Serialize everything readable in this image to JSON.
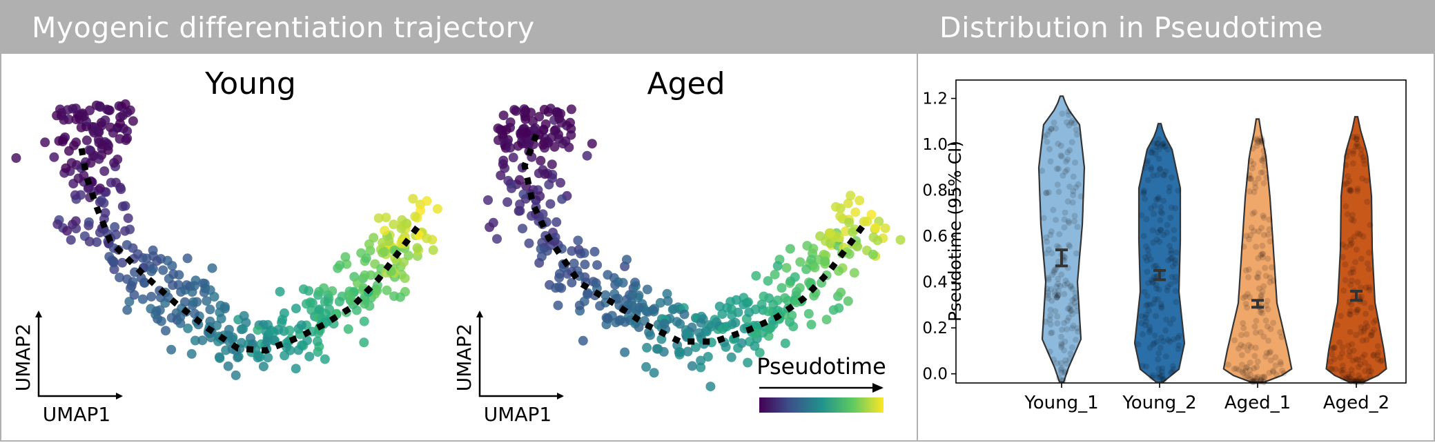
{
  "left_panel": {
    "title": "Myogenic differentiation trajectory"
  },
  "right_panel": {
    "title": "Distribution in Pseudotime"
  },
  "chart_data": [
    {
      "type": "scatter",
      "title": "Young",
      "xlabel": "UMAP1",
      "ylabel": "UMAP2",
      "colorbar_label": "Pseudotime",
      "colormap": "viridis",
      "trajectory_color": "#000000"
    },
    {
      "type": "scatter",
      "title": "Aged",
      "xlabel": "UMAP1",
      "ylabel": "UMAP2",
      "colorbar_label": "Pseudotime",
      "colormap": "viridis",
      "trajectory_color": "#000000"
    },
    {
      "type": "violin",
      "ylabel": "Pseudotime (95% CI)",
      "ylim": [
        -0.04,
        1.28
      ],
      "yticks": [
        "0.0",
        "0.2",
        "0.4",
        "0.6",
        "0.8",
        "1.0",
        "1.2"
      ],
      "categories": [
        "Young_1",
        "Young_2",
        "Aged_1",
        "Aged_2"
      ],
      "series": [
        {
          "name": "Young_1",
          "color": "#8db9dc",
          "mean": 0.5,
          "ci": [
            0.47,
            0.54
          ],
          "range": [
            0.0,
            1.21
          ]
        },
        {
          "name": "Young_2",
          "color": "#2b6fa8",
          "mean": 0.43,
          "ci": [
            0.41,
            0.45
          ],
          "range": [
            0.0,
            1.09
          ]
        },
        {
          "name": "Aged_1",
          "color": "#f0a76a",
          "mean": 0.31,
          "ci": [
            0.29,
            0.32
          ],
          "range": [
            0.0,
            1.11
          ]
        },
        {
          "name": "Aged_2",
          "color": "#c8571a",
          "mean": 0.34,
          "ci": [
            0.32,
            0.36
          ],
          "range": [
            0.0,
            1.12
          ]
        }
      ]
    }
  ]
}
